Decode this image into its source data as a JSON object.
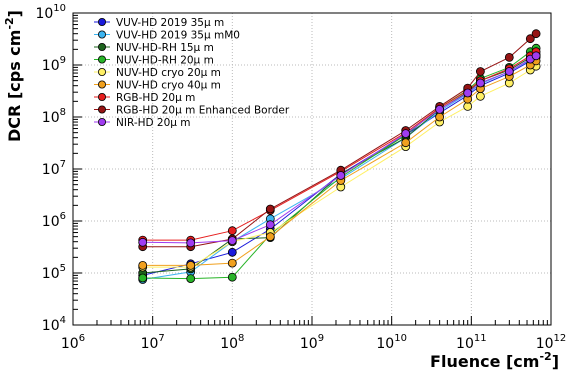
{
  "chart_data": {
    "type": "scatter",
    "xlabel_main": "Fluence [cm",
    "xlabel_exp": "-2",
    "xlabel_end": "]",
    "ylabel_main": "DCR [cps cm",
    "ylabel_exp": "-2",
    "ylabel_end": "]",
    "xscale": "log",
    "yscale": "log",
    "xlim": [
      1000000,
      1000000000000
    ],
    "ylim": [
      10000,
      10000000000
    ],
    "xticks": [
      {
        "value": 1000000,
        "base": "10",
        "exp": "6"
      },
      {
        "value": 10000000,
        "base": "10",
        "exp": "7"
      },
      {
        "value": 100000000,
        "base": "10",
        "exp": "8"
      },
      {
        "value": 1000000000,
        "base": "10",
        "exp": "9"
      },
      {
        "value": 10000000000,
        "base": "10",
        "exp": "10"
      },
      {
        "value": 100000000000,
        "base": "10",
        "exp": "11"
      },
      {
        "value": 1000000000000,
        "base": "10",
        "exp": "12"
      }
    ],
    "yticks": [
      {
        "value": 10000,
        "base": "10",
        "exp": "4"
      },
      {
        "value": 100000,
        "base": "10",
        "exp": "5"
      },
      {
        "value": 1000000,
        "base": "10",
        "exp": "6"
      },
      {
        "value": 10000000,
        "base": "10",
        "exp": "7"
      },
      {
        "value": 100000000,
        "base": "10",
        "exp": "8"
      },
      {
        "value": 1000000000,
        "base": "10",
        "exp": "9"
      },
      {
        "value": 10000000000,
        "base": "10",
        "exp": "10"
      }
    ],
    "grid": true,
    "legend_position": "top-left",
    "series": [
      {
        "name": "VUV-HD 2019 35µ m",
        "color": "#1a1adc",
        "x": [
          7500000.0,
          30000000.0,
          100000000.0,
          300000000.0,
          2300000000.0,
          15000000000.0,
          40000000000.0,
          90000000000.0,
          130000000000.0,
          300000000000.0,
          550000000000.0,
          650000000000.0
        ],
        "y": [
          90000.0,
          150000.0,
          250000.0,
          700000.0,
          8000000.0,
          45000000.0,
          120000000.0,
          260000000.0,
          400000000.0,
          700000000.0,
          1200000000.0,
          1400000000.0
        ]
      },
      {
        "name": "VUV-HD 2019 35µ mM0",
        "color": "#3cb4f0",
        "x": [
          7500000.0,
          30000000.0,
          100000000.0,
          300000000.0,
          2300000000.0,
          15000000000.0,
          40000000000.0,
          90000000000.0,
          130000000000.0,
          300000000000.0,
          550000000000.0,
          650000000000.0
        ],
        "y": [
          75000.0,
          105000.0,
          400000.0,
          1100000.0,
          6500000.0,
          40000000.0,
          130000000.0,
          280000000.0,
          430000000.0,
          750000000.0,
          1250000000.0,
          1500000000.0
        ]
      },
      {
        "name": "NUV-HD-RH 15µ m",
        "color": "#1e641e",
        "x": [
          7500000.0,
          30000000.0,
          100000000.0,
          300000000.0,
          2300000000.0,
          15000000000.0,
          40000000000.0,
          90000000000.0,
          130000000000.0,
          300000000000.0,
          550000000000.0,
          650000000000.0
        ],
        "y": [
          100000.0,
          120000.0,
          450000.0,
          480000.0,
          8000000.0,
          40000000.0,
          140000000.0,
          300000000.0,
          500000000.0,
          800000000.0,
          1400000000.0,
          1600000000.0
        ]
      },
      {
        "name": "NUV-HD-RH 20µ m",
        "color": "#28b428",
        "x": [
          7500000.0,
          30000000.0,
          100000000.0,
          300000000.0,
          2300000000.0,
          15000000000.0,
          40000000000.0,
          90000000000.0,
          130000000000.0,
          300000000000.0,
          550000000000.0,
          650000000000.0
        ],
        "y": [
          80000.0,
          78000.0,
          83000.0,
          550000.0,
          7000000.0,
          45000000.0,
          150000000.0,
          330000000.0,
          550000000.0,
          900000000.0,
          1800000000.0,
          2100000000.0
        ]
      },
      {
        "name": "NUV-HD cryo 20µ m",
        "color": "#fff064",
        "x": [
          7500000.0,
          30000000.0,
          100000000.0,
          300000000.0,
          2300000000.0,
          15000000000.0,
          40000000000.0,
          90000000000.0,
          130000000000.0,
          300000000000.0,
          550000000000.0,
          650000000000.0
        ],
        "y": [
          130000.0,
          130000.0,
          400000.0,
          600000.0,
          4500000.0,
          27000000.0,
          80000000.0,
          160000000.0,
          250000000.0,
          450000000.0,
          800000000.0,
          950000000.0
        ]
      },
      {
        "name": "NUV-HD cryo 40µ m",
        "color": "#f0a01e",
        "x": [
          7500000.0,
          30000000.0,
          100000000.0,
          300000000.0,
          2300000000.0,
          15000000000.0,
          40000000000.0,
          90000000000.0,
          130000000000.0,
          300000000000.0,
          550000000000.0,
          650000000000.0
        ],
        "y": [
          140000.0,
          140000.0,
          155000.0,
          500000.0,
          6000000.0,
          32000000.0,
          100000000.0,
          220000000.0,
          350000000.0,
          600000000.0,
          1000000000.0,
          1200000000.0
        ]
      },
      {
        "name": "RGB-HD 20µ m",
        "color": "#e61e1e",
        "x": [
          7500000.0,
          30000000.0,
          100000000.0,
          300000000.0,
          2300000000.0,
          15000000000.0,
          40000000000.0,
          90000000000.0,
          130000000000.0,
          300000000000.0,
          550000000000.0,
          650000000000.0
        ],
        "y": [
          430000.0,
          430000.0,
          650000.0,
          1600000.0,
          9000000.0,
          50000000.0,
          150000000.0,
          320000000.0,
          500000000.0,
          850000000.0,
          1500000000.0,
          1800000000.0
        ]
      },
      {
        "name": "RGB-HD 20µ m Enhanced Border",
        "color": "#961414",
        "x": [
          7500000.0,
          30000000.0,
          100000000.0,
          300000000.0,
          2300000000.0,
          15000000000.0,
          40000000000.0,
          90000000000.0,
          130000000000.0,
          300000000000.0,
          550000000000.0,
          650000000000.0
        ],
        "y": [
          320000.0,
          320000.0,
          450000.0,
          1700000.0,
          9500000.0,
          55000000.0,
          160000000.0,
          360000000.0,
          750000000.0,
          1400000000.0,
          3200000000.0,
          4000000000.0
        ]
      },
      {
        "name": "NIR-HD 20µ m",
        "color": "#a03cf0",
        "x": [
          7500000.0,
          30000000.0,
          100000000.0,
          300000000.0,
          2300000000.0,
          15000000000.0,
          40000000000.0,
          90000000000.0,
          130000000000.0,
          300000000000.0,
          550000000000.0,
          650000000000.0
        ],
        "y": [
          390000.0,
          380000.0,
          420000.0,
          850000.0,
          7500000.0,
          48000000.0,
          140000000.0,
          290000000.0,
          450000000.0,
          750000000.0,
          1300000000.0,
          1500000000.0
        ]
      }
    ]
  }
}
